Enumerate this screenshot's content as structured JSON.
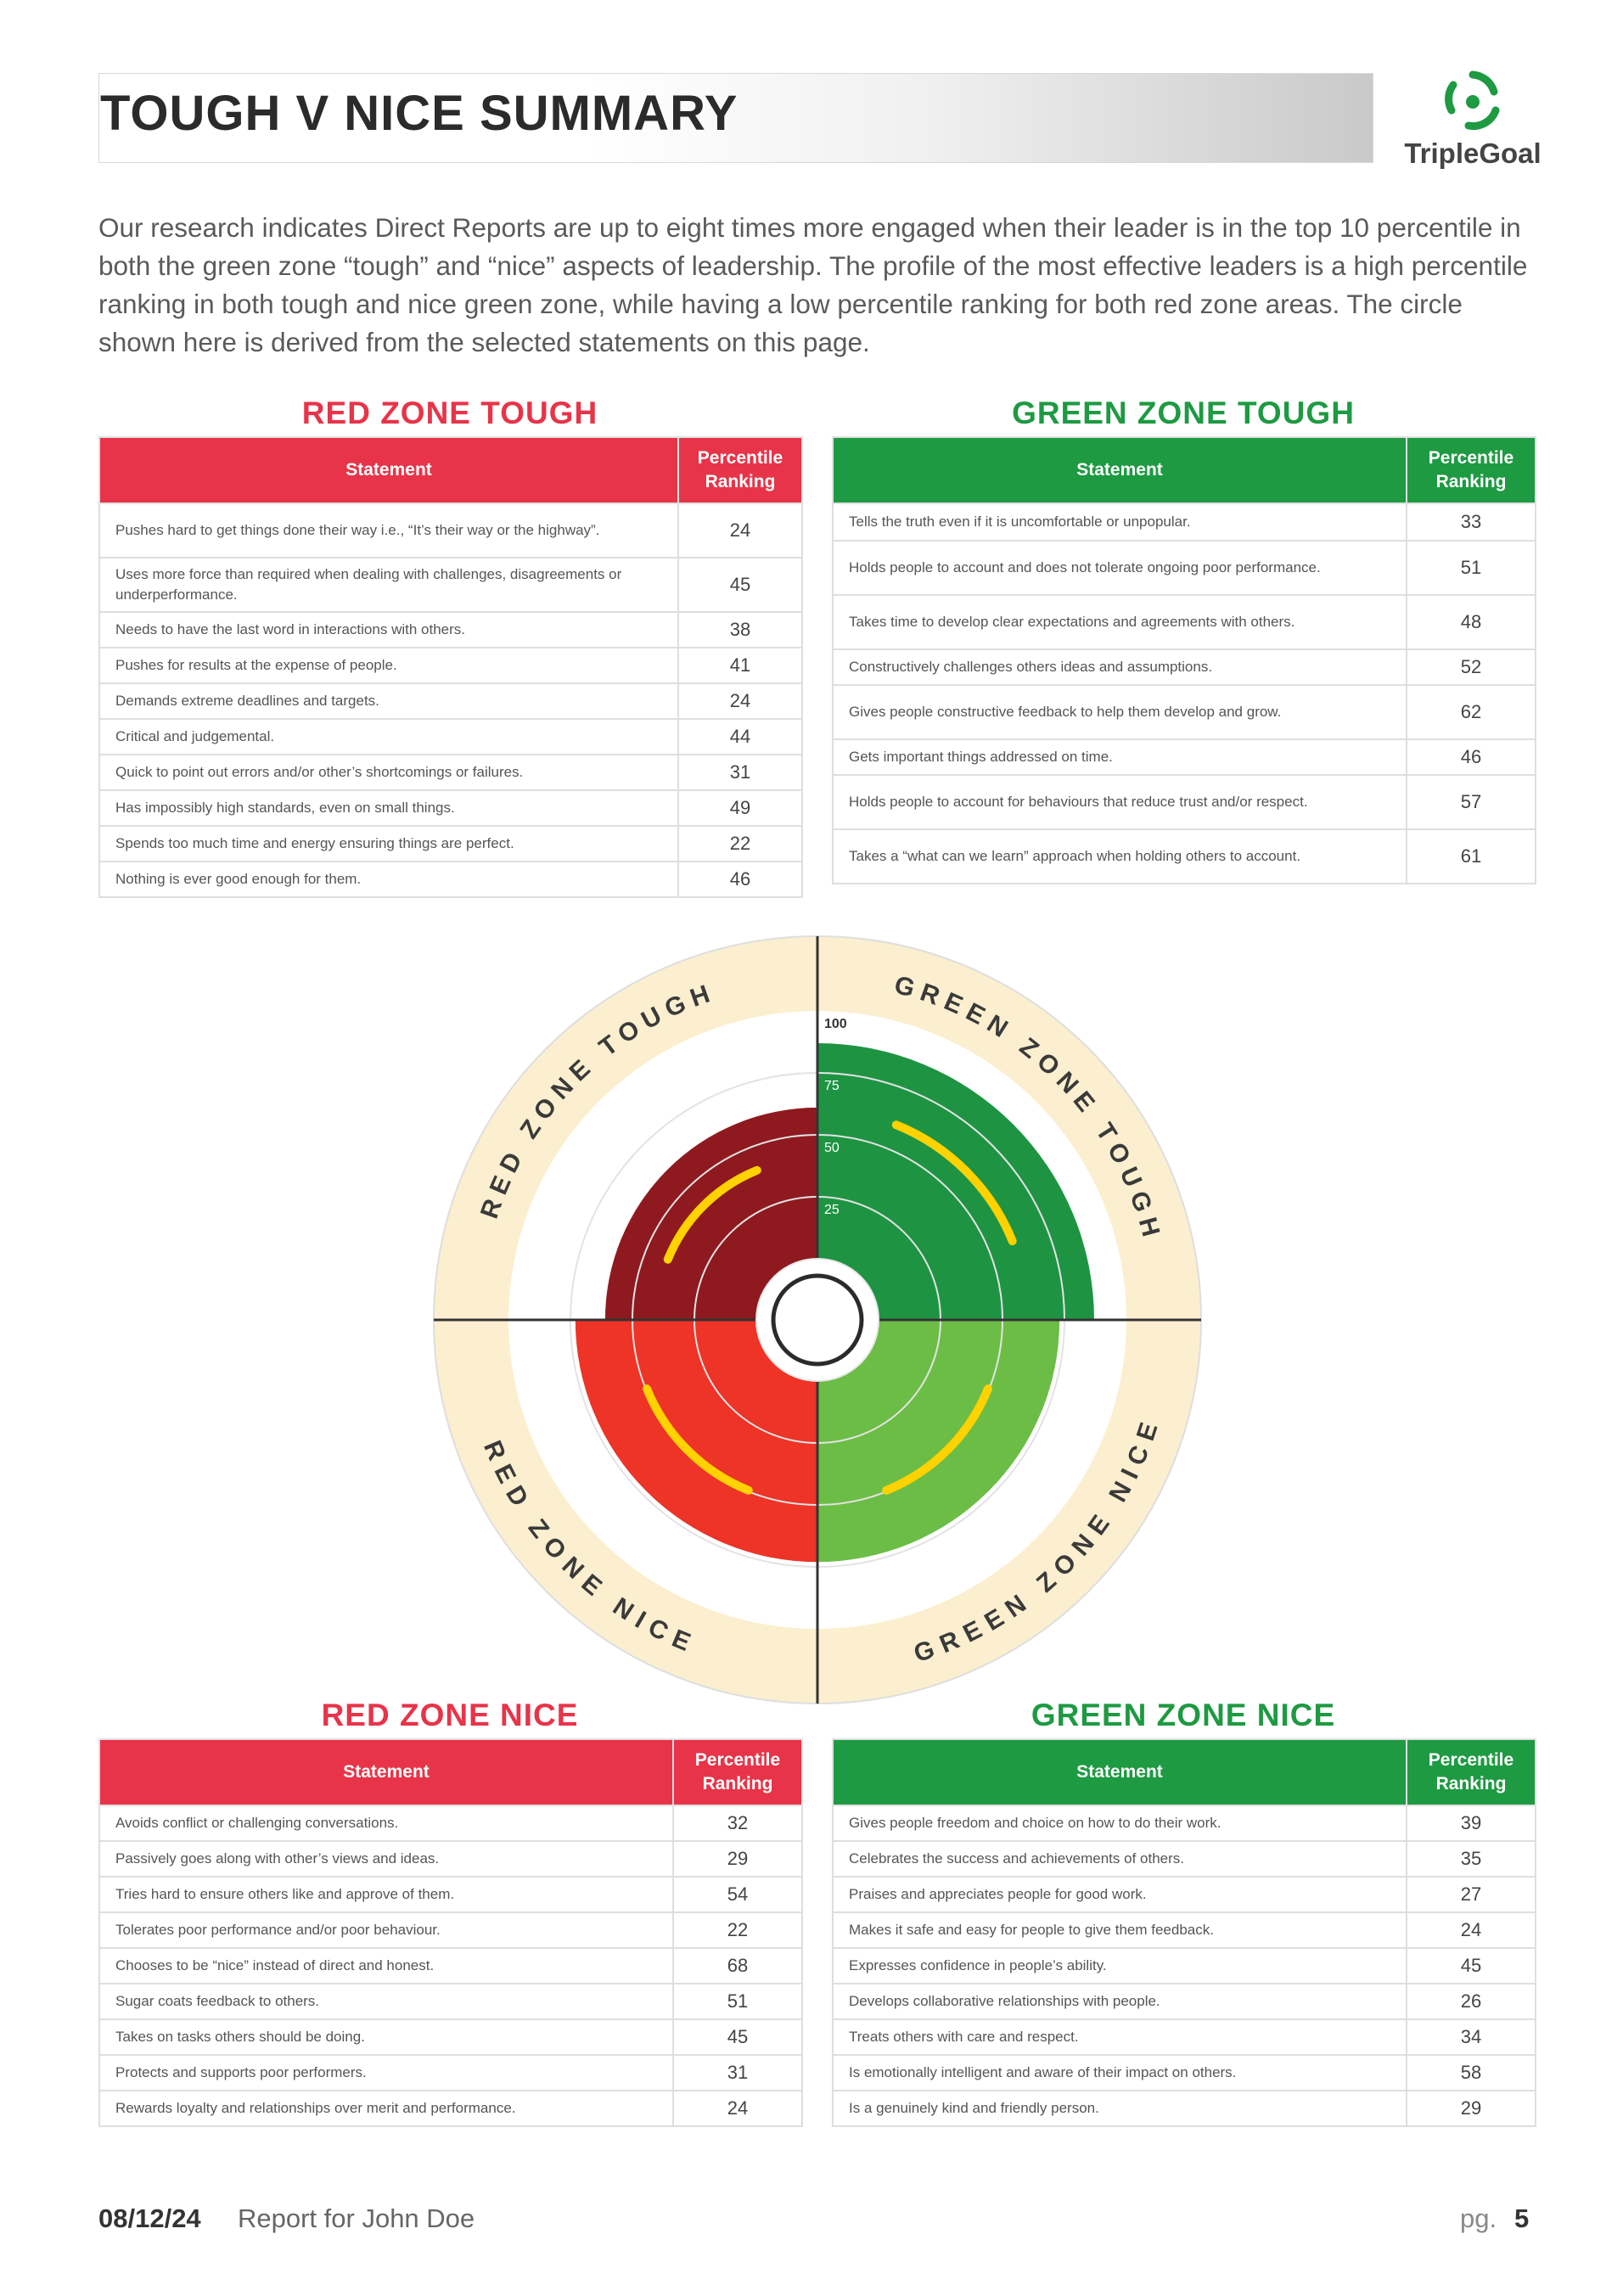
{
  "header": {
    "title": "TOUGH V NICE SUMMARY",
    "logo_text": "TripleGoal"
  },
  "intro": "Our research indicates Direct Reports are up to eight times more engaged when their leader is in the top 10 percentile in both the green zone “tough” and “nice” aspects of leadership. The profile of the most effective leaders is a high percentile ranking in both tough and nice green zone, while having a low percentile ranking for both red zone areas. The circle shown here is derived from the selected statements on this page.",
  "colors": {
    "red_header": "#e73449",
    "green_header": "#1e9a42",
    "red_tough": "#8e1a1f",
    "red_nice": "#ee3327",
    "green_tough": "#1e9443",
    "green_nice": "#6cbd45",
    "rim": "#fbefcf",
    "marker": "#ffd200"
  },
  "tables": {
    "red_tough": {
      "title": "RED ZONE TOUGH",
      "col_statement": "Statement",
      "col_rank": "Percentile Ranking",
      "rows": [
        {
          "statement": "Pushes hard to get things done their way i.e., “It’s their way or the highway”.",
          "value": "24"
        },
        {
          "statement": "Uses more force than required when dealing with challenges, disagreements or underperformance.",
          "value": "45"
        },
        {
          "statement": "Needs to have the last word in interactions with others.",
          "value": "38"
        },
        {
          "statement": "Pushes for results at the expense of people.",
          "value": "41"
        },
        {
          "statement": "Demands extreme deadlines and targets.",
          "value": "24"
        },
        {
          "statement": "Critical and judgemental.",
          "value": "44"
        },
        {
          "statement": "Quick to point out errors and/or other’s shortcomings or failures.",
          "value": "31"
        },
        {
          "statement": "Has impossibly high standards, even on small things.",
          "value": "49"
        },
        {
          "statement": "Spends too much time and energy ensuring things are perfect.",
          "value": "22"
        },
        {
          "statement": "Nothing is ever good enough for them.",
          "value": "46"
        }
      ]
    },
    "green_tough": {
      "title": "GREEN ZONE TOUGH",
      "col_statement": "Statement",
      "col_rank": "Percentile Ranking",
      "rows": [
        {
          "statement": "Tells the truth even if it is uncomfortable or unpopular.",
          "value": "33"
        },
        {
          "statement": "Holds people to account and does not tolerate ongoing poor performance.",
          "value": "51"
        },
        {
          "statement": "Takes time to develop clear expectations and agreements with others.",
          "value": "48"
        },
        {
          "statement": "Constructively challenges others ideas and assumptions.",
          "value": "52"
        },
        {
          "statement": "Gives people constructive feedback to help them develop and grow.",
          "value": "62"
        },
        {
          "statement": "Gets important things addressed on time.",
          "value": "46"
        },
        {
          "statement": "Holds people to account for behaviours that reduce trust and/or respect.",
          "value": "57"
        },
        {
          "statement": "Takes a “what can we learn” approach when holding others to account.",
          "value": "61"
        }
      ]
    },
    "red_nice": {
      "title": "RED ZONE NICE",
      "col_statement": "Statement",
      "col_rank": "Percentile Ranking",
      "rows": [
        {
          "statement": "Avoids conflict or challenging conversations.",
          "value": "32"
        },
        {
          "statement": "Passively goes along with other’s views and ideas.",
          "value": "29"
        },
        {
          "statement": "Tries hard to ensure others like and approve of them.",
          "value": "54"
        },
        {
          "statement": "Tolerates poor performance and/or poor behaviour.",
          "value": "22"
        },
        {
          "statement": "Chooses to be “nice” instead of direct and honest.",
          "value": "68"
        },
        {
          "statement": "Sugar coats feedback to others.",
          "value": "51"
        },
        {
          "statement": "Takes on tasks others should be doing.",
          "value": "45"
        },
        {
          "statement": "Protects and supports poor performers.",
          "value": "31"
        },
        {
          "statement": "Rewards loyalty and relationships over merit and performance.",
          "value": "24"
        }
      ]
    },
    "green_nice": {
      "title": "GREEN ZONE NICE",
      "col_statement": "Statement",
      "col_rank": "Percentile Ranking",
      "rows": [
        {
          "statement": "Gives people freedom and choice on how to do their work.",
          "value": "39"
        },
        {
          "statement": "Celebrates the success and achievements of others.",
          "value": "35"
        },
        {
          "statement": "Praises and appreciates people for good work.",
          "value": "27"
        },
        {
          "statement": "Makes it safe and easy for people to give them feedback.",
          "value": "24"
        },
        {
          "statement": "Expresses confidence in people’s ability.",
          "value": "45"
        },
        {
          "statement": "Develops collaborative relationships with people.",
          "value": "26"
        },
        {
          "statement": "Treats others with care and respect.",
          "value": "34"
        },
        {
          "statement": "Is emotionally intelligent and aware of their impact on others.",
          "value": "58"
        },
        {
          "statement": "Is a genuinely kind and friendly person.",
          "value": "29"
        }
      ]
    }
  },
  "wheel": {
    "scale_ticks": [
      "100",
      "75",
      "50",
      "25"
    ],
    "quadrant_labels": {
      "red_tough": "RED ZONE TOUGH",
      "green_tough": "GREEN ZONE TOUGH",
      "red_nice": "RED ZONE NICE",
      "green_nice": "GREEN ZONE NICE"
    },
    "levels": {
      "red_tough": 61,
      "green_tough": 87,
      "red_nice": 73,
      "green_nice": 73
    }
  },
  "footer": {
    "date": "08/12/24",
    "report": "Report for John Doe",
    "page_label": "pg.",
    "page_number": "5"
  }
}
